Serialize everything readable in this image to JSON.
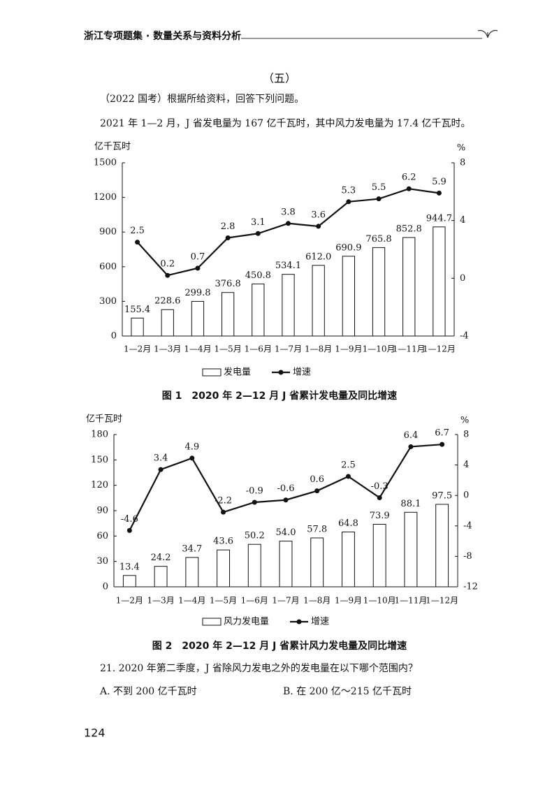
{
  "header": "浙江专项题集 · 数量关系与资料分析",
  "section": "（五）",
  "intro": [
    "（2022 国考）根据所给资料，回答下列问题。",
    "2021 年 1—2 月，J 省发电量为 167 亿千瓦时，其中风力发电量为 17.4 亿千瓦时。"
  ],
  "chart_data": [
    {
      "type": "combo",
      "title": "图 1　2020 年 2—12 月 J 省累计发电量及同比增速",
      "y_label": "亿千瓦时",
      "y2_label": "%",
      "categories": [
        "1—2月",
        "1—3月",
        "1—4月",
        "1—5月",
        "1—6月",
        "1—7月",
        "1—8月",
        "1—9月",
        "1—10月",
        "1—11月",
        "1—12月"
      ],
      "series": [
        {
          "name": "发电量",
          "type": "bar",
          "color": "#ffffff",
          "values": [
            155.4,
            228.6,
            299.8,
            376.8,
            450.8,
            534.1,
            612.0,
            690.9,
            765.8,
            852.8,
            944.7
          ],
          "value_labels": [
            "155.4",
            "228.6",
            "299.8",
            "376.8",
            "450.8",
            "534.1",
            "612.0",
            "690.9",
            "765.8",
            "852.8",
            "944.7"
          ]
        },
        {
          "name": "增速",
          "type": "line",
          "color": "#111111",
          "axis": "y2",
          "values": [
            2.5,
            0.2,
            0.7,
            2.8,
            3.1,
            3.8,
            3.6,
            5.3,
            5.5,
            6.2,
            5.9
          ]
        }
      ],
      "ylim": [
        0,
        1500
      ],
      "yticks": [
        0,
        300,
        600,
        900,
        1200,
        1500
      ],
      "y2lim": [
        -4,
        8
      ],
      "y2ticks": [
        -4,
        0,
        4,
        8
      ],
      "legend": "bottom"
    },
    {
      "type": "combo",
      "title": "图 2　2020 年 2—12 月 J 省累计风力发电量及同比增速",
      "y_label": "亿千瓦时",
      "y2_label": "%",
      "categories": [
        "1—2月",
        "1—3月",
        "1—4月",
        "1—5月",
        "1—6月",
        "1—7月",
        "1—8月",
        "1—9月",
        "1—10月",
        "1—11月",
        "1—12月"
      ],
      "series": [
        {
          "name": "风力发电量",
          "type": "bar",
          "color": "#ffffff",
          "values": [
            13.4,
            24.2,
            34.7,
            43.6,
            50.2,
            54.0,
            57.8,
            64.8,
            73.9,
            88.1,
            97.5
          ],
          "value_labels": [
            "13.4",
            "24.2",
            "34.7",
            "43.6",
            "50.2",
            "54.0",
            "57.8",
            "64.8",
            "73.9",
            "88.1",
            "97.5"
          ]
        },
        {
          "name": "增速",
          "type": "line",
          "color": "#111111",
          "axis": "y2",
          "values": [
            -4.6,
            3.4,
            4.9,
            -2.2,
            -0.9,
            -0.6,
            0.6,
            2.5,
            -0.3,
            6.4,
            6.7
          ]
        }
      ],
      "ylim": [
        0,
        180
      ],
      "yticks": [
        0,
        30,
        60,
        90,
        120,
        150,
        180
      ],
      "y2lim": [
        -12,
        8
      ],
      "y2ticks": [
        -12,
        -8,
        -4,
        0,
        4,
        8
      ],
      "legend": "bottom"
    }
  ],
  "question": "21. 2020 年第二季度，J 省除风力发电之外的发电量在以下哪个范围内？",
  "options": [
    "A. 不到 200 亿千瓦时",
    "B. 在 200 亿～215 亿千瓦时"
  ],
  "page_number": "124"
}
